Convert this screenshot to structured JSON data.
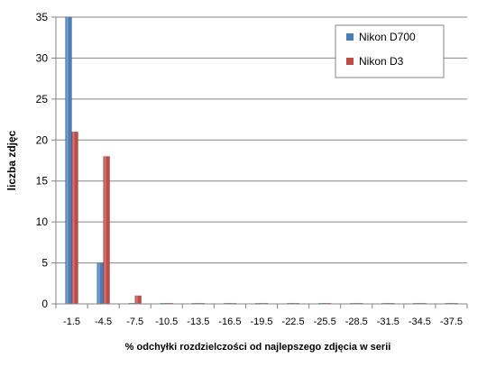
{
  "chart_data": {
    "type": "bar",
    "title": "",
    "xlabel": "% odchyłki  rozdzielczości  od najlepszego  zdjęcia  w serii",
    "ylabel": "liczba zdjęc",
    "categories": [
      "-1.5",
      "-4.5",
      "-7.5",
      "-10.5",
      "-13.5",
      "-16.5",
      "-19.5",
      "-22.5",
      "-25.5",
      "-28.5",
      "-31.5",
      "-34.5",
      "-37.5"
    ],
    "series": [
      {
        "name": "Nikon D700",
        "values": [
          35,
          5,
          0,
          0,
          0,
          0,
          0,
          0,
          0,
          0,
          0,
          0,
          0
        ]
      },
      {
        "name": "Nikon D3",
        "values": [
          21,
          18,
          1,
          0,
          0,
          0,
          0,
          0,
          0,
          0,
          0,
          0,
          0
        ]
      }
    ],
    "ylim": [
      0,
      35
    ],
    "yticks": [
      0,
      5,
      10,
      15,
      20,
      25,
      30,
      35
    ],
    "grid": true,
    "legend_position": "top-right",
    "colors": {
      "Nikon D700": "#4a7ebb",
      "Nikon D3": "#be4b48"
    }
  }
}
